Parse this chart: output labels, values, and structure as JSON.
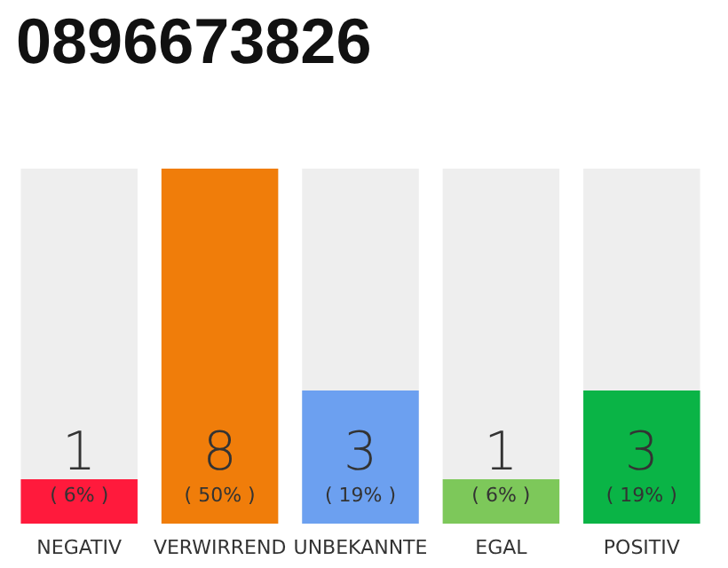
{
  "chart_data": {
    "type": "bar",
    "title": "0896673826",
    "categories": [
      "NEGATIV",
      "VERWIRREND",
      "UNBEKANNTE",
      "EGAL",
      "POSITIV"
    ],
    "values": [
      1,
      8,
      3,
      1,
      3
    ],
    "colors": [
      "#ff1a3c",
      "#f07d0a",
      "#6ca0f0",
      "#7dc85a",
      "#0ab446"
    ],
    "value_labels": [
      "1\n( 6% )",
      "8\n( 50% )",
      "3\n( 19% )",
      "1\n( 6% )",
      "3\n( 19% )"
    ]
  }
}
